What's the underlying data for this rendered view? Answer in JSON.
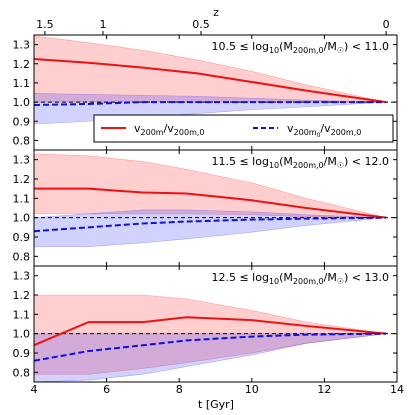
{
  "chart_data": {
    "type": "line",
    "xlabel": "t [Gyr]",
    "x_ticks": [
      4,
      6,
      8,
      10,
      12,
      14
    ],
    "xlim": [
      4,
      14
    ],
    "top_axis": {
      "label": "z",
      "ticks": [
        {
          "label": "1.5",
          "t": 4.3
        },
        {
          "label": "1",
          "t": 5.9
        },
        {
          "label": "0.5",
          "t": 8.6
        },
        {
          "label": "0",
          "t": 13.7
        }
      ]
    },
    "ylim": [
      0.75,
      1.35
    ],
    "y_ticks": [
      "0.8",
      "0.9",
      "1.0",
      "1.1",
      "1.2",
      "1.3"
    ],
    "y_tick_values": [
      0.8,
      0.9,
      1.0,
      1.1,
      1.2,
      1.3
    ],
    "reference_line": 1.0,
    "legend": {
      "placement": "panel-1-lower-right",
      "entries": [
        {
          "series": "v200m",
          "text": "v200m/v200m,0",
          "color": "#ee1111",
          "style": "solid"
        },
        {
          "series": "v200m0",
          "text": "v200m0/v200m,0",
          "color": "#1111dd",
          "style": "dashed"
        }
      ]
    },
    "panels": [
      {
        "title": "10.5 ≤ log10(M200m,0/M☉) < 11.0",
        "x": [
          4.0,
          5.5,
          7.0,
          8.5,
          10.0,
          11.5,
          13.7
        ],
        "red": [
          1.225,
          1.205,
          1.18,
          1.15,
          1.105,
          1.06,
          1.0
        ],
        "red_lo": [
          1.0,
          1.0,
          1.0,
          1.0,
          1.0,
          1.0,
          1.0
        ],
        "red_hi": [
          1.345,
          1.31,
          1.27,
          1.22,
          1.16,
          1.09,
          1.0
        ],
        "blue": [
          0.985,
          0.99,
          1.0,
          1.0,
          1.0,
          1.0,
          1.0
        ],
        "blue_lo": [
          0.885,
          0.9,
          0.92,
          0.94,
          0.96,
          0.975,
          1.0
        ],
        "blue_hi": [
          1.045,
          1.04,
          1.035,
          1.03,
          1.02,
          1.01,
          1.0
        ]
      },
      {
        "title": "11.5 ≤ log10(M200m,0/M☉) < 12.0",
        "x": [
          4.0,
          5.5,
          7.0,
          8.2,
          10.0,
          11.5,
          13.7
        ],
        "red": [
          1.15,
          1.15,
          1.13,
          1.125,
          1.09,
          1.05,
          1.0
        ],
        "red_lo": [
          1.02,
          1.02,
          1.02,
          1.02,
          1.015,
          1.005,
          1.0
        ],
        "red_hi": [
          1.33,
          1.32,
          1.29,
          1.25,
          1.18,
          1.1,
          1.0
        ],
        "blue": [
          0.93,
          0.95,
          0.97,
          0.98,
          0.99,
          0.995,
          1.0
        ],
        "blue_lo": [
          0.85,
          0.85,
          0.87,
          0.89,
          0.925,
          0.96,
          1.0
        ],
        "blue_hi": [
          1.0,
          1.02,
          1.04,
          1.04,
          1.03,
          1.015,
          1.0
        ]
      },
      {
        "title": "12.5 ≤ log10(M200m,0/M☉) < 13.0",
        "x": [
          4.0,
          5.5,
          7.0,
          8.2,
          10.0,
          11.5,
          13.7
        ],
        "red": [
          0.94,
          1.06,
          1.06,
          1.085,
          1.07,
          1.04,
          1.0
        ],
        "red_lo": [
          0.79,
          0.79,
          0.82,
          0.85,
          0.9,
          0.95,
          1.0
        ],
        "red_hi": [
          1.2,
          1.2,
          1.2,
          1.18,
          1.12,
          1.06,
          1.0
        ],
        "blue": [
          0.86,
          0.91,
          0.94,
          0.965,
          0.985,
          0.995,
          1.0
        ],
        "blue_lo": [
          0.75,
          0.76,
          0.79,
          0.83,
          0.89,
          0.95,
          1.0
        ],
        "blue_hi": [
          1.0,
          1.0,
          1.0,
          1.0,
          1.0,
          1.0,
          1.0
        ]
      }
    ]
  }
}
